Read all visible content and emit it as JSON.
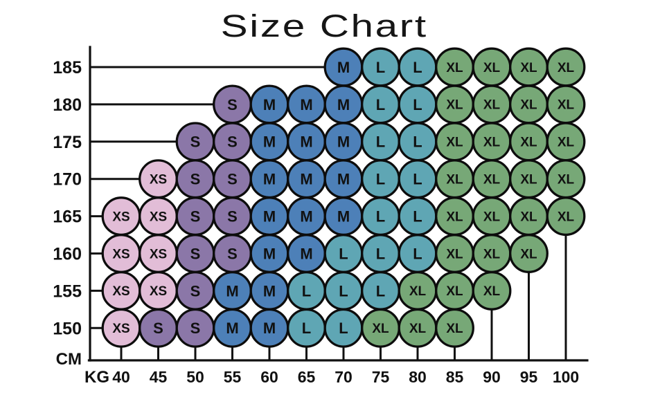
{
  "title": "Size Chart",
  "axes": {
    "y_unit": "CM",
    "x_unit": "KG",
    "heights": [
      185,
      180,
      175,
      170,
      165,
      160,
      155,
      150
    ],
    "weights": [
      40,
      45,
      50,
      55,
      60,
      65,
      70,
      75,
      80,
      85,
      90,
      95,
      100
    ]
  },
  "sizes": {
    "XS": {
      "label": "XS",
      "color": "#e2bdd7"
    },
    "S": {
      "label": "S",
      "color": "#8b77a8"
    },
    "M": {
      "label": "M",
      "color": "#4d80b8"
    },
    "L": {
      "label": "L",
      "color": "#5fa6b4"
    },
    "XL": {
      "label": "XL",
      "color": "#77a877"
    }
  },
  "line_color": "#101010",
  "chart_data": {
    "type": "scatter",
    "title": "Size Chart",
    "xlabel": "KG",
    "ylabel": "CM",
    "x_axis_ticks": [
      40,
      45,
      50,
      55,
      60,
      65,
      70,
      75,
      80,
      85,
      90,
      95,
      100
    ],
    "y_axis_ticks": [
      185,
      180,
      175,
      170,
      165,
      160,
      155,
      150
    ],
    "grid": false,
    "legend": false,
    "matrix_rows_are_heights_cols_are_weights": true,
    "matrix": [
      [
        null,
        null,
        null,
        null,
        null,
        null,
        "M",
        "L",
        "L",
        "XL",
        "XL",
        "XL",
        "XL"
      ],
      [
        null,
        null,
        null,
        "S",
        "M",
        "M",
        "M",
        "L",
        "L",
        "XL",
        "XL",
        "XL",
        "XL"
      ],
      [
        null,
        null,
        "S",
        "S",
        "M",
        "M",
        "M",
        "L",
        "L",
        "XL",
        "XL",
        "XL",
        "XL"
      ],
      [
        null,
        "XS",
        "S",
        "S",
        "M",
        "M",
        "M",
        "L",
        "L",
        "XL",
        "XL",
        "XL",
        "XL"
      ],
      [
        "XS",
        "XS",
        "S",
        "S",
        "M",
        "M",
        "M",
        "L",
        "L",
        "XL",
        "XL",
        "XL",
        "XL"
      ],
      [
        "XS",
        "XS",
        "S",
        "S",
        "M",
        "M",
        "L",
        "L",
        "L",
        "XL",
        "XL",
        "XL",
        null
      ],
      [
        "XS",
        "XS",
        "S",
        "M",
        "M",
        "L",
        "L",
        "L",
        "XL",
        "XL",
        "XL",
        null,
        null
      ],
      [
        "XS",
        "S",
        "S",
        "M",
        "M",
        "L",
        "L",
        "XL",
        "XL",
        "XL",
        null,
        null,
        null
      ]
    ]
  }
}
